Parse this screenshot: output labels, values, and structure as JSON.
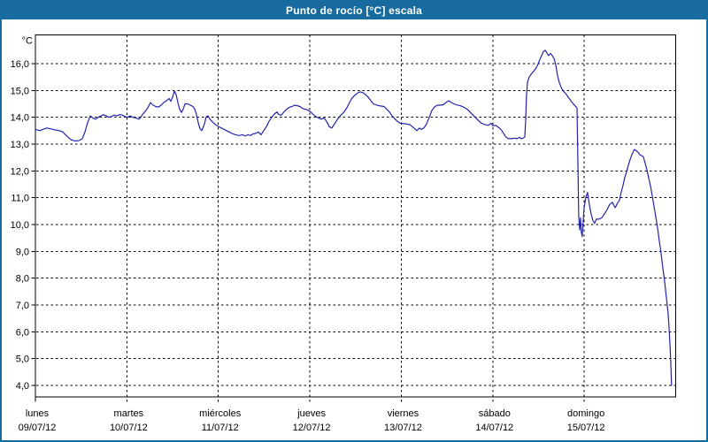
{
  "window": {
    "title": "Punto de rocío [°C] escala"
  },
  "colors": {
    "titlebar_bg": "#176B9E",
    "window_border": "#176B9E",
    "plot_bg": "#FFFFFF",
    "plot_frame": "#000000",
    "gridline": "#000000",
    "line_color": "#2323AC",
    "text_color": "#000000"
  },
  "chart_data": {
    "type": "line",
    "title": "Punto de rocío [°C] escala",
    "grid": "dashed",
    "legend": "none",
    "y_axis": {
      "unit_label": "°C",
      "ylim": [
        3.55,
        17.05
      ],
      "ticks": [
        {
          "label": "16,0",
          "value": 16
        },
        {
          "label": "15,0",
          "value": 15
        },
        {
          "label": "14,0",
          "value": 14
        },
        {
          "label": "13,0",
          "value": 13
        },
        {
          "label": "12,0",
          "value": 12
        },
        {
          "label": "11,0",
          "value": 11
        },
        {
          "label": "10,0",
          "value": 10
        },
        {
          "label": "9,0",
          "value": 9
        },
        {
          "label": "8,0",
          "value": 8
        },
        {
          "label": "7,0",
          "value": 7
        },
        {
          "label": "6,0",
          "value": 6
        },
        {
          "label": "5,0",
          "value": 5
        },
        {
          "label": "4,0",
          "value": 4
        }
      ]
    },
    "x_axis": {
      "xlim_days": [
        0,
        7
      ],
      "days": [
        {
          "name": "lunes",
          "date": "09/07/12"
        },
        {
          "name": "martes",
          "date": "10/07/12"
        },
        {
          "name": "miércoles",
          "date": "11/07/12"
        },
        {
          "name": "jueves",
          "date": "12/07/12"
        },
        {
          "name": "viernes",
          "date": "13/07/12"
        },
        {
          "name": "sábado",
          "date": "14/07/12"
        },
        {
          "name": "domingo",
          "date": "15/07/12"
        }
      ]
    },
    "series": [
      {
        "name": "Punto de rocío",
        "unit": "°C",
        "x_unit": "days since lunes 09/07/12 00:00",
        "points": [
          [
            0,
            13.55
          ],
          [
            0.048,
            13.5
          ],
          [
            0.097,
            13.57
          ],
          [
            0.126,
            13.6
          ],
          [
            0.164,
            13.57
          ],
          [
            0.213,
            13.53
          ],
          [
            0.261,
            13.5
          ],
          [
            0.3,
            13.45
          ],
          [
            0.329,
            13.35
          ],
          [
            0.368,
            13.22
          ],
          [
            0.397,
            13.15
          ],
          [
            0.435,
            13.12
          ],
          [
            0.474,
            13.13
          ],
          [
            0.513,
            13.2
          ],
          [
            0.542,
            13.45
          ],
          [
            0.571,
            13.8
          ],
          [
            0.6,
            14.05
          ],
          [
            0.629,
            13.97
          ],
          [
            0.658,
            13.93
          ],
          [
            0.687,
            14
          ],
          [
            0.716,
            14.05
          ],
          [
            0.745,
            14.1
          ],
          [
            0.774,
            14.05
          ],
          [
            0.803,
            14
          ],
          [
            0.832,
            14.03
          ],
          [
            0.861,
            14.08
          ],
          [
            0.89,
            14.05
          ],
          [
            0.919,
            14.1
          ],
          [
            0.948,
            14.08
          ],
          [
            0.977,
            14.03
          ],
          [
            1.006,
            14
          ],
          [
            1.035,
            14.05
          ],
          [
            1.064,
            14
          ],
          [
            1.103,
            13.97
          ],
          [
            1.132,
            13.93
          ],
          [
            1.151,
            14
          ],
          [
            1.17,
            14.1
          ],
          [
            1.2,
            14.22
          ],
          [
            1.229,
            14.35
          ],
          [
            1.258,
            14.55
          ],
          [
            1.287,
            14.45
          ],
          [
            1.316,
            14.4
          ],
          [
            1.345,
            14.38
          ],
          [
            1.374,
            14.45
          ],
          [
            1.403,
            14.55
          ],
          [
            1.432,
            14.62
          ],
          [
            1.461,
            14.7
          ],
          [
            1.48,
            14.6
          ],
          [
            1.5,
            14.75
          ],
          [
            1.519,
            14.97
          ],
          [
            1.538,
            14.85
          ],
          [
            1.558,
            14.55
          ],
          [
            1.577,
            14.3
          ],
          [
            1.596,
            14.18
          ],
          [
            1.616,
            14.3
          ],
          [
            1.635,
            14.5
          ],
          [
            1.664,
            14.5
          ],
          [
            1.693,
            14.45
          ],
          [
            1.722,
            14.4
          ],
          [
            1.741,
            14.32
          ],
          [
            1.761,
            14.1
          ],
          [
            1.78,
            13.8
          ],
          [
            1.799,
            13.58
          ],
          [
            1.819,
            13.5
          ],
          [
            1.848,
            13.75
          ],
          [
            1.867,
            14.02
          ],
          [
            1.886,
            14.05
          ],
          [
            1.915,
            13.9
          ],
          [
            1.944,
            13.8
          ],
          [
            1.973,
            13.72
          ],
          [
            2.003,
            13.65
          ],
          [
            2.032,
            13.6
          ],
          [
            2.061,
            13.55
          ],
          [
            2.09,
            13.5
          ],
          [
            2.119,
            13.45
          ],
          [
            2.148,
            13.4
          ],
          [
            2.186,
            13.35
          ],
          [
            2.225,
            13.32
          ],
          [
            2.264,
            13.35
          ],
          [
            2.293,
            13.3
          ],
          [
            2.322,
            13.35
          ],
          [
            2.351,
            13.32
          ],
          [
            2.38,
            13.38
          ],
          [
            2.409,
            13.4
          ],
          [
            2.438,
            13.45
          ],
          [
            2.467,
            13.35
          ],
          [
            2.496,
            13.5
          ],
          [
            2.525,
            13.65
          ],
          [
            2.554,
            13.85
          ],
          [
            2.583,
            14
          ],
          [
            2.612,
            14.12
          ],
          [
            2.641,
            14.2
          ],
          [
            2.66,
            14.1
          ],
          [
            2.689,
            14.08
          ],
          [
            2.718,
            14.2
          ],
          [
            2.747,
            14.3
          ],
          [
            2.776,
            14.37
          ],
          [
            2.805,
            14.4
          ],
          [
            2.834,
            14.45
          ],
          [
            2.863,
            14.43
          ],
          [
            2.892,
            14.4
          ],
          [
            2.921,
            14.33
          ],
          [
            2.95,
            14.3
          ],
          [
            2.979,
            14.27
          ],
          [
            3.009,
            14.2
          ],
          [
            3.038,
            14.1
          ],
          [
            3.067,
            14.03
          ],
          [
            3.096,
            13.97
          ],
          [
            3.125,
            13.93
          ],
          [
            3.154,
            13.98
          ],
          [
            3.183,
            13.85
          ],
          [
            3.212,
            13.65
          ],
          [
            3.241,
            13.6
          ],
          [
            3.26,
            13.7
          ],
          [
            3.289,
            13.85
          ],
          [
            3.318,
            14
          ],
          [
            3.347,
            14.1
          ],
          [
            3.376,
            14.2
          ],
          [
            3.405,
            14.35
          ],
          [
            3.434,
            14.55
          ],
          [
            3.463,
            14.72
          ],
          [
            3.492,
            14.82
          ],
          [
            3.521,
            14.9
          ],
          [
            3.551,
            14.95
          ],
          [
            3.58,
            14.92
          ],
          [
            3.609,
            14.85
          ],
          [
            3.638,
            14.75
          ],
          [
            3.667,
            14.62
          ],
          [
            3.696,
            14.5
          ],
          [
            3.734,
            14.45
          ],
          [
            3.773,
            14.42
          ],
          [
            3.812,
            14.4
          ],
          [
            3.841,
            14.3
          ],
          [
            3.87,
            14.2
          ],
          [
            3.899,
            14.05
          ],
          [
            3.928,
            13.95
          ],
          [
            3.957,
            13.85
          ],
          [
            3.986,
            13.78
          ],
          [
            4.015,
            13.77
          ],
          [
            4.054,
            13.75
          ],
          [
            4.092,
            13.73
          ],
          [
            4.121,
            13.65
          ],
          [
            4.15,
            13.57
          ],
          [
            4.17,
            13.5
          ],
          [
            4.199,
            13.6
          ],
          [
            4.218,
            13.55
          ],
          [
            4.247,
            13.6
          ],
          [
            4.276,
            13.75
          ],
          [
            4.305,
            14
          ],
          [
            4.334,
            14.25
          ],
          [
            4.363,
            14.38
          ],
          [
            4.392,
            14.45
          ],
          [
            4.431,
            14.45
          ],
          [
            4.46,
            14.47
          ],
          [
            4.489,
            14.55
          ],
          [
            4.518,
            14.62
          ],
          [
            4.547,
            14.55
          ],
          [
            4.576,
            14.5
          ],
          [
            4.605,
            14.46
          ],
          [
            4.644,
            14.43
          ],
          [
            4.682,
            14.38
          ],
          [
            4.721,
            14.3
          ],
          [
            4.75,
            14.2
          ],
          [
            4.779,
            14.1
          ],
          [
            4.808,
            14
          ],
          [
            4.837,
            13.9
          ],
          [
            4.866,
            13.8
          ],
          [
            4.895,
            13.75
          ],
          [
            4.924,
            13.72
          ],
          [
            4.953,
            13.7
          ],
          [
            4.982,
            13.78
          ],
          [
            5.002,
            13.68
          ],
          [
            5.031,
            13.7
          ],
          [
            5.06,
            13.63
          ],
          [
            5.089,
            13.55
          ],
          [
            5.118,
            13.4
          ],
          [
            5.147,
            13.25
          ],
          [
            5.176,
            13.2
          ],
          [
            5.205,
            13.2
          ],
          [
            5.234,
            13.22
          ],
          [
            5.263,
            13.2
          ],
          [
            5.292,
            13.25
          ],
          [
            5.311,
            13.2
          ],
          [
            5.331,
            13.22
          ],
          [
            5.35,
            13.27
          ],
          [
            5.36,
            13.9
          ],
          [
            5.369,
            14.8
          ],
          [
            5.379,
            15.3
          ],
          [
            5.398,
            15.5
          ],
          [
            5.418,
            15.6
          ],
          [
            5.437,
            15.68
          ],
          [
            5.456,
            15.75
          ],
          [
            5.476,
            15.85
          ],
          [
            5.495,
            15.98
          ],
          [
            5.514,
            16.15
          ],
          [
            5.534,
            16.3
          ],
          [
            5.553,
            16.45
          ],
          [
            5.573,
            16.5
          ],
          [
            5.592,
            16.4
          ],
          [
            5.611,
            16.3
          ],
          [
            5.631,
            16.38
          ],
          [
            5.65,
            16.3
          ],
          [
            5.669,
            16.2
          ],
          [
            5.689,
            15.95
          ],
          [
            5.708,
            15.55
          ],
          [
            5.727,
            15.3
          ],
          [
            5.747,
            15.12
          ],
          [
            5.766,
            15
          ],
          [
            5.785,
            14.93
          ],
          [
            5.805,
            14.85
          ],
          [
            5.824,
            14.75
          ],
          [
            5.843,
            14.67
          ],
          [
            5.863,
            14.57
          ],
          [
            5.882,
            14.5
          ],
          [
            5.901,
            14.42
          ],
          [
            5.921,
            14.35
          ],
          [
            5.93,
            12.5
          ],
          [
            5.94,
            10.3
          ],
          [
            5.95,
            9.8
          ],
          [
            5.959,
            10.25
          ],
          [
            5.969,
            9.7
          ],
          [
            5.978,
            9.55
          ],
          [
            5.998,
            10.6
          ],
          [
            6.017,
            11
          ],
          [
            6.036,
            11.2
          ],
          [
            6.056,
            10.75
          ],
          [
            6.075,
            10.4
          ],
          [
            6.094,
            10.15
          ],
          [
            6.114,
            10.05
          ],
          [
            6.133,
            10.2
          ],
          [
            6.162,
            10.2
          ],
          [
            6.191,
            10.25
          ],
          [
            6.22,
            10.4
          ],
          [
            6.249,
            10.55
          ],
          [
            6.278,
            10.75
          ],
          [
            6.307,
            10.83
          ],
          [
            6.327,
            10.7
          ],
          [
            6.34,
            10.63
          ],
          [
            6.36,
            10.78
          ],
          [
            6.385,
            10.9
          ],
          [
            6.404,
            11.2
          ],
          [
            6.423,
            11.45
          ],
          [
            6.443,
            11.75
          ],
          [
            6.462,
            11.95
          ],
          [
            6.481,
            12.2
          ],
          [
            6.5,
            12.4
          ],
          [
            6.52,
            12.6
          ],
          [
            6.54,
            12.75
          ],
          [
            6.549,
            12.8
          ],
          [
            6.569,
            12.75
          ],
          [
            6.588,
            12.7
          ],
          [
            6.607,
            12.6
          ],
          [
            6.627,
            12.57
          ],
          [
            6.646,
            12.53
          ],
          [
            6.665,
            12.3
          ],
          [
            6.685,
            12.05
          ],
          [
            6.704,
            11.75
          ],
          [
            6.723,
            11.45
          ],
          [
            6.743,
            11.1
          ],
          [
            6.762,
            10.7
          ],
          [
            6.781,
            10.3
          ],
          [
            6.801,
            9.9
          ],
          [
            6.82,
            9.4
          ],
          [
            6.839,
            8.95
          ],
          [
            6.859,
            8.4
          ],
          [
            6.878,
            7.9
          ],
          [
            6.897,
            7.3
          ],
          [
            6.917,
            6.7
          ],
          [
            6.926,
            6.2
          ],
          [
            6.936,
            5.6
          ],
          [
            6.946,
            4.9
          ],
          [
            6.955,
            4
          ]
        ]
      }
    ]
  }
}
